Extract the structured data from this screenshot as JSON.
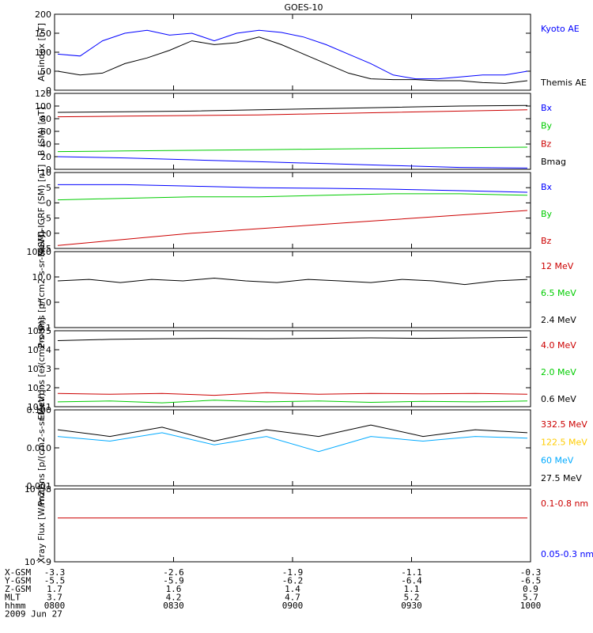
{
  "title": "GOES-10",
  "x_axis": {
    "tick_times": [
      "0800",
      "0830",
      "0900",
      "0930",
      "1000"
    ],
    "rows": [
      {
        "label": "X-GSM",
        "values": [
          "-3.3",
          "-2.6",
          "-1.9",
          "-1.1",
          "-0.3"
        ]
      },
      {
        "label": "Y-GSM",
        "values": [
          "-5.5",
          "-5.9",
          "-6.2",
          "-6.4",
          "-6.5"
        ]
      },
      {
        "label": "Z-GSM",
        "values": [
          "1.7",
          "1.6",
          "1.4",
          "1.1",
          "0.9"
        ]
      },
      {
        "label": "MLT",
        "values": [
          "3.7",
          "4.2",
          "4.7",
          "5.2",
          "5.7"
        ]
      },
      {
        "label": "hhmm",
        "values": [
          "0800",
          "0830",
          "0900",
          "0930",
          "1000"
        ]
      }
    ],
    "date": "2009 Jun 27"
  },
  "chart_data": [
    {
      "type": "line",
      "ylabel": "AE index [nT]",
      "ylim": [
        0,
        200
      ],
      "y_ticks": [
        "200",
        "150",
        "100",
        "50",
        "0"
      ],
      "x": [
        "07:45",
        "07:50",
        "07:55",
        "08:00",
        "08:05",
        "08:10",
        "08:15",
        "08:20",
        "08:25",
        "08:30",
        "08:35",
        "08:40",
        "08:45",
        "08:50",
        "08:55",
        "09:00",
        "09:10",
        "09:20",
        "09:30",
        "09:40",
        "09:50",
        "10:00"
      ],
      "series": [
        {
          "name": "Kyoto AE",
          "color": "#0000ff",
          "values": [
            95,
            90,
            130,
            150,
            158,
            145,
            150,
            130,
            150,
            158,
            152,
            140,
            120,
            95,
            70,
            40,
            30,
            30,
            35,
            40,
            40,
            50
          ]
        },
        {
          "name": "Themis AE",
          "color": "#000000",
          "values": [
            50,
            40,
            45,
            70,
            85,
            105,
            130,
            120,
            125,
            140,
            120,
            95,
            70,
            45,
            30,
            28,
            28,
            25,
            25,
            20,
            18,
            25
          ]
        }
      ]
    },
    {
      "type": "line",
      "ylabel": "B (SM) [nT]",
      "ylim": [
        0,
        120
      ],
      "y_ticks": [
        "120",
        "100",
        "80",
        "60",
        "40",
        "20",
        "0"
      ],
      "series": [
        {
          "name": "Bx",
          "color": "#0000ff",
          "values": [
            20,
            18,
            15,
            12,
            9,
            6,
            3,
            2
          ]
        },
        {
          "name": "By",
          "color": "#00cc00",
          "values": [
            28,
            29,
            30,
            31,
            32,
            33,
            34,
            35
          ]
        },
        {
          "name": "Bz",
          "color": "#cc0000",
          "values": [
            83,
            84,
            85,
            86,
            88,
            90,
            92,
            94
          ]
        },
        {
          "name": "Bmag",
          "color": "#000000",
          "values": [
            90,
            91,
            92,
            94,
            96,
            98,
            100,
            101
          ]
        }
      ]
    },
    {
      "type": "line",
      "ylabel": "B(SM)-IGRF (SM) [nT]",
      "ylim": [
        -15,
        10
      ],
      "y_ticks": [
        "10",
        "5",
        "0",
        "-5",
        "-10",
        "-15"
      ],
      "series": [
        {
          "name": "Bx",
          "color": "#0000ff",
          "values": [
            6,
            6,
            5.5,
            5,
            4.8,
            4.5,
            4,
            3.5
          ]
        },
        {
          "name": "By",
          "color": "#00cc00",
          "values": [
            1,
            1.5,
            2,
            2,
            2.5,
            3,
            3,
            2.5
          ]
        },
        {
          "name": "Bz",
          "color": "#cc0000",
          "values": [
            -14,
            -12,
            -10,
            -8.5,
            -7,
            -5.5,
            -4,
            -2.5
          ]
        }
      ]
    },
    {
      "type": "line",
      "ylabel": "Protons [p/(cm2-s-sr-MeV)]",
      "scale": "log",
      "ylim": [
        0.1,
        100
      ],
      "y_ticks": [
        "100.0",
        "10.0",
        "1.0",
        "0.1"
      ],
      "series": [
        {
          "name": "12 MeV",
          "color": "#cc0000"
        },
        {
          "name": "6.5 MeV",
          "color": "#00cc00"
        },
        {
          "name": "2.4 MeV",
          "color": "#000000",
          "values": [
            7,
            8,
            6,
            8,
            7,
            9,
            7,
            6,
            8,
            7,
            6,
            8,
            7,
            5,
            7,
            8
          ]
        }
      ]
    },
    {
      "type": "line",
      "ylabel": "Electrons [e/(cm2-s-sr)]",
      "scale": "log",
      "ylim": [
        10,
        100000
      ],
      "y_ticks": [
        "10^5",
        "10^4",
        "10^3",
        "10^2",
        "10^1"
      ],
      "series": [
        {
          "name": "4.0 MeV",
          "color": "#cc0000",
          "values": [
            50,
            45,
            50,
            40,
            55,
            45,
            50,
            48,
            50,
            45
          ]
        },
        {
          "name": "2.0 MeV",
          "color": "#00cc00",
          "values": [
            18,
            20,
            16,
            22,
            18,
            20,
            17,
            19,
            18,
            20
          ]
        },
        {
          "name": "0.6 MeV",
          "color": "#000000",
          "values": [
            30000,
            35000,
            38000,
            40000,
            38000,
            40000,
            42000,
            40000,
            42000,
            45000
          ]
        }
      ]
    },
    {
      "type": "line",
      "ylabel": "Protons [p/(cm2-s-sr-MeV)]",
      "scale": "log",
      "ylim": [
        0.001,
        0.1
      ],
      "y_ticks": [
        "0.100",
        "0.010",
        "0.001"
      ],
      "series": [
        {
          "name": "332.5 MeV",
          "color": "#cc0000"
        },
        {
          "name": "122.5 MeV",
          "color": "#ffcc00"
        },
        {
          "name": "60 MeV",
          "color": "#00aaff",
          "values": [
            0.02,
            0.015,
            0.025,
            0.012,
            0.02,
            0.008,
            0.02,
            0.015,
            0.02,
            0.018
          ]
        },
        {
          "name": "27.5 MeV",
          "color": "#000000",
          "values": [
            0.03,
            0.02,
            0.035,
            0.015,
            0.03,
            0.02,
            0.04,
            0.02,
            0.03,
            0.025
          ]
        }
      ]
    },
    {
      "type": "line",
      "ylabel": "Xray Flux [W/m2]",
      "scale": "log",
      "ylim": [
        1e-09,
        1e-08
      ],
      "y_ticks": [
        "10^-8",
        "10^-9"
      ],
      "series": [
        {
          "name": "0.1-0.8 nm",
          "color": "#cc0000",
          "values": [
            4e-09,
            4e-09
          ]
        },
        {
          "name": "0.05-0.3 nm",
          "color": "#0000ff"
        }
      ]
    }
  ]
}
